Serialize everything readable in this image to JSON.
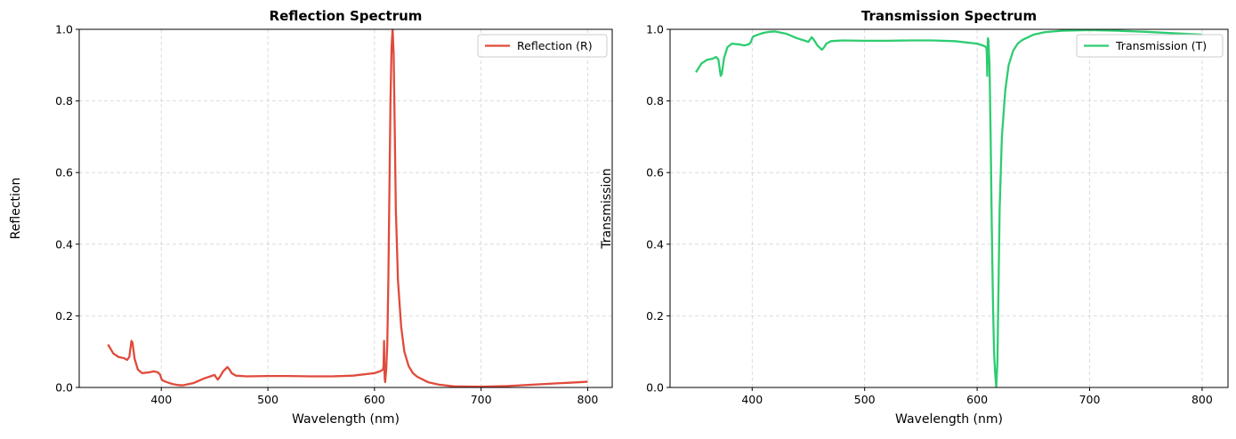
{
  "chart_data": [
    {
      "type": "line",
      "title": "Reflection Spectrum",
      "xlabel": "Wavelength (nm)",
      "ylabel": "Reflection",
      "xlim": [
        323,
        823
      ],
      "ylim": [
        0,
        1
      ],
      "x_ticks": [
        400,
        500,
        600,
        700,
        800
      ],
      "y_ticks": [
        "0.0",
        "0.2",
        "0.4",
        "0.6",
        "0.8",
        "1.0"
      ],
      "grid": true,
      "legend_position": "top-right",
      "series": [
        {
          "name": "Reflection (R)",
          "color": "#e04a3b",
          "x": [
            350,
            355,
            360,
            365,
            368,
            370,
            372,
            373,
            375,
            378,
            382,
            388,
            393,
            397,
            399,
            400,
            401,
            405,
            410,
            415,
            420,
            430,
            440,
            447,
            450,
            451,
            453,
            455,
            458,
            462,
            464,
            466,
            470,
            480,
            500,
            520,
            540,
            560,
            580,
            600,
            605,
            607,
            608,
            608.5,
            609,
            609.3,
            609.6,
            610,
            611,
            612,
            613,
            614,
            615,
            616,
            617,
            618,
            619,
            620,
            622,
            625,
            628,
            632,
            636,
            640,
            650,
            660,
            675,
            700,
            725,
            750,
            775,
            800
          ],
          "y": [
            0.12,
            0.095,
            0.085,
            0.082,
            0.077,
            0.085,
            0.13,
            0.125,
            0.08,
            0.05,
            0.04,
            0.042,
            0.045,
            0.042,
            0.035,
            0.025,
            0.02,
            0.015,
            0.01,
            0.007,
            0.006,
            0.012,
            0.025,
            0.032,
            0.035,
            0.03,
            0.022,
            0.03,
            0.045,
            0.057,
            0.05,
            0.04,
            0.033,
            0.031,
            0.032,
            0.032,
            0.031,
            0.031,
            0.033,
            0.04,
            0.045,
            0.048,
            0.05,
            0.06,
            0.13,
            0.05,
            0.025,
            0.015,
            0.05,
            0.12,
            0.3,
            0.55,
            0.8,
            0.95,
            1.0,
            0.93,
            0.72,
            0.5,
            0.3,
            0.17,
            0.1,
            0.06,
            0.04,
            0.03,
            0.015,
            0.008,
            0.003,
            0.002,
            0.004,
            0.008,
            0.012,
            0.016
          ]
        }
      ]
    },
    {
      "type": "line",
      "title": "Transmission Spectrum",
      "xlabel": "Wavelength (nm)",
      "ylabel": "Transmission",
      "xlim": [
        327,
        823
      ],
      "ylim": [
        0,
        1
      ],
      "x_ticks": [
        400,
        500,
        600,
        700,
        800
      ],
      "y_ticks": [
        "0.0",
        "0.2",
        "0.4",
        "0.6",
        "0.8",
        "1.0"
      ],
      "grid": true,
      "legend_position": "top-right",
      "series": [
        {
          "name": "Transmission (T)",
          "color": "#2ecc71",
          "x": [
            350,
            355,
            360,
            365,
            368,
            370,
            372,
            373,
            375,
            378,
            382,
            388,
            393,
            397,
            399,
            400,
            401,
            405,
            410,
            415,
            420,
            430,
            440,
            447,
            450,
            451,
            453,
            455,
            458,
            462,
            464,
            466,
            470,
            480,
            500,
            520,
            540,
            560,
            580,
            600,
            605,
            607,
            608,
            608.5,
            609,
            609.3,
            609.6,
            610,
            611,
            612,
            613,
            614,
            615,
            616,
            617,
            618,
            619,
            620,
            622,
            625,
            628,
            632,
            636,
            640,
            650,
            660,
            675,
            700,
            725,
            750,
            775,
            800
          ],
          "y": [
            0.88,
            0.905,
            0.915,
            0.918,
            0.923,
            0.915,
            0.87,
            0.875,
            0.92,
            0.95,
            0.96,
            0.958,
            0.955,
            0.958,
            0.965,
            0.975,
            0.98,
            0.985,
            0.99,
            0.993,
            0.994,
            0.988,
            0.975,
            0.968,
            0.965,
            0.97,
            0.978,
            0.97,
            0.955,
            0.943,
            0.95,
            0.96,
            0.967,
            0.969,
            0.968,
            0.968,
            0.969,
            0.969,
            0.967,
            0.96,
            0.955,
            0.952,
            0.95,
            0.94,
            0.87,
            0.95,
            0.975,
            0.97,
            0.9,
            0.7,
            0.45,
            0.25,
            0.1,
            0.04,
            0.0,
            0.07,
            0.28,
            0.5,
            0.7,
            0.83,
            0.9,
            0.94,
            0.96,
            0.97,
            0.985,
            0.992,
            0.996,
            0.998,
            0.996,
            0.993,
            0.989,
            0.985
          ]
        }
      ]
    }
  ]
}
